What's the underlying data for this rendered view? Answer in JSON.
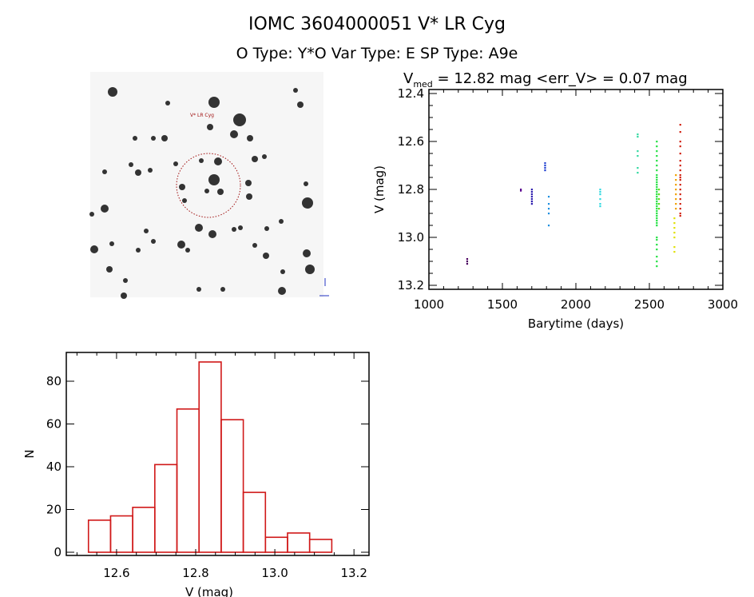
{
  "header": {
    "title": "IOMC 3604000051    V* LR Cyg",
    "subtitle": "O Type: Y*O  Var Type: E  SP Type: A9e"
  },
  "image_panel": {
    "label": "V* LR Cyg"
  },
  "chart_data": [
    {
      "type": "scatter",
      "title_main": "V",
      "title_sub": "med",
      "title_rest": " = 12.82 mag <err_V> = 0.07 mag",
      "xlabel": "Barytime (days)",
      "ylabel": "V (mag)",
      "xlim": [
        1000,
        3000
      ],
      "ylim": [
        13.2,
        12.4
      ],
      "xticks": [
        "1000",
        "1500",
        "2000",
        "2500",
        "3000"
      ],
      "yticks": [
        "12.4",
        "12.6",
        "12.8",
        "13.0",
        "13.2"
      ],
      "series": [
        {
          "x": 1260,
          "color": "#4b0060",
          "y": [
            13.09,
            13.1,
            13.11
          ]
        },
        {
          "x": 1625,
          "color": "#5a0090",
          "y": [
            12.8,
            12.805
          ]
        },
        {
          "x": 1700,
          "color": "#3020b0",
          "y": [
            12.8,
            12.81,
            12.82,
            12.83,
            12.84,
            12.85,
            12.86
          ]
        },
        {
          "x": 1790,
          "color": "#2040d0",
          "y": [
            12.69,
            12.7,
            12.71,
            12.72
          ]
        },
        {
          "x": 1815,
          "color": "#2090e0",
          "y": [
            12.83,
            12.86,
            12.88,
            12.9,
            12.95
          ]
        },
        {
          "x": 2165,
          "color": "#30d8e0",
          "y": [
            12.8,
            12.81,
            12.82,
            12.84,
            12.86,
            12.87
          ]
        },
        {
          "x": 2420,
          "color": "#30d8a0",
          "y": [
            12.57,
            12.58,
            12.64,
            12.66,
            12.71,
            12.73
          ]
        },
        {
          "x": 2550,
          "color": "#20e040",
          "y": [
            12.6,
            12.62,
            12.64,
            12.66,
            12.68,
            12.7,
            12.72,
            12.74,
            12.75,
            12.76,
            12.77,
            12.78,
            12.79,
            12.8,
            12.81,
            12.82,
            12.83,
            12.84,
            12.85,
            12.86,
            12.87,
            12.88,
            12.89,
            12.9,
            12.91,
            12.92,
            12.93,
            12.94,
            12.95,
            13.0,
            13.01,
            13.03,
            13.05,
            13.08,
            13.1,
            13.12
          ]
        },
        {
          "x": 2565,
          "color": "#60e020",
          "y": [
            12.8,
            12.82,
            12.84,
            12.86,
            12.88
          ]
        },
        {
          "x": 2670,
          "color": "#e0e000",
          "y": [
            12.92,
            12.94,
            12.96,
            12.98,
            13.0,
            13.04,
            13.06
          ]
        },
        {
          "x": 2680,
          "color": "#f0a000",
          "y": [
            12.74,
            12.76,
            12.78,
            12.8,
            12.82,
            12.84,
            12.86,
            12.88
          ]
        },
        {
          "x": 2710,
          "color": "#d02010",
          "y": [
            12.53,
            12.56,
            12.6,
            12.62,
            12.65,
            12.68,
            12.7,
            12.72,
            12.74,
            12.75,
            12.76,
            12.78,
            12.8,
            12.82,
            12.84,
            12.86,
            12.88,
            12.9,
            12.91
          ]
        }
      ]
    },
    {
      "type": "bar",
      "xlabel": "V (mag)",
      "ylabel": "N",
      "xlim": [
        12.473,
        13.238
      ],
      "ylim": [
        0,
        93.5
      ],
      "xticks": [
        "12.6",
        "12.8",
        "13.0",
        "13.2"
      ],
      "yticks": [
        "0",
        "20",
        "40",
        "60",
        "80"
      ],
      "bin_start": 12.529,
      "bin_width": 0.0559,
      "values": [
        15,
        17,
        21,
        41,
        67,
        89,
        62,
        28,
        7,
        9,
        6
      ],
      "color": "#d01818"
    }
  ]
}
